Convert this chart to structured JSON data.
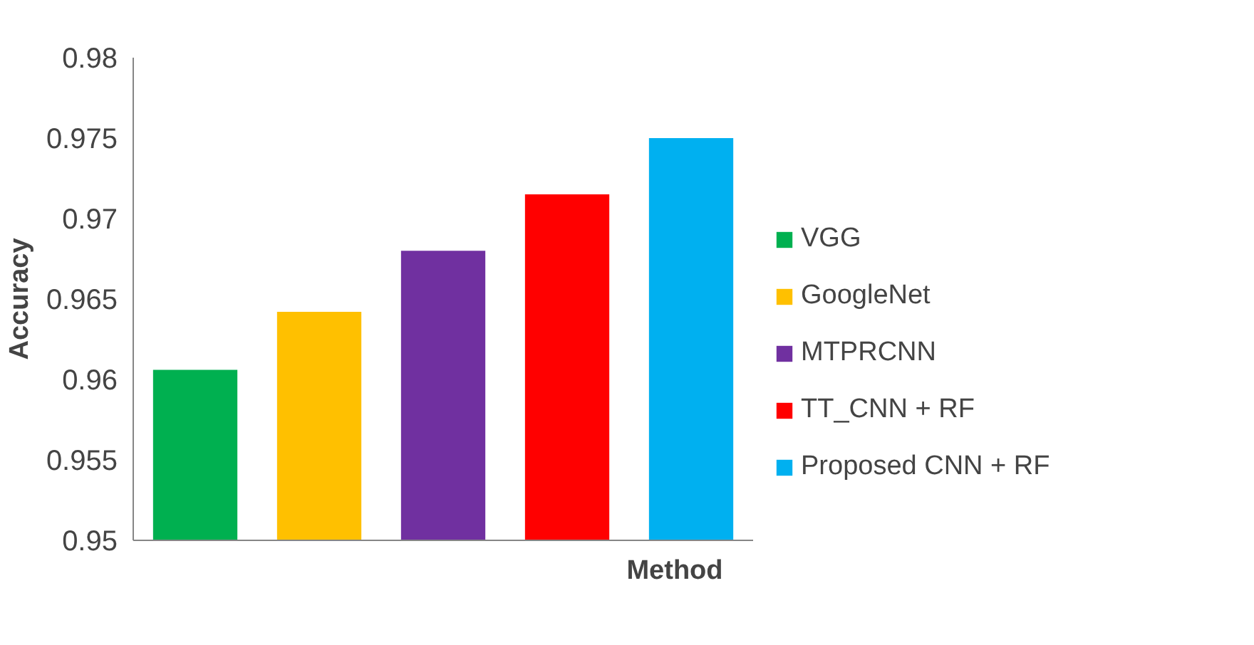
{
  "chart_data": {
    "type": "bar",
    "xlabel": "Method",
    "ylabel": "Accuracy",
    "categories": [
      null,
      null,
      null,
      null,
      null
    ],
    "series": [
      {
        "name": "VGG",
        "color": "#00b050",
        "values": [
          0.9606,
          null,
          null,
          null,
          null
        ]
      },
      {
        "name": "GoogleNet",
        "color": "#ffc000",
        "values": [
          null,
          0.9642,
          null,
          null,
          null
        ]
      },
      {
        "name": "MTPRCNN",
        "color": "#7030a0",
        "values": [
          null,
          null,
          0.968,
          null,
          null
        ]
      },
      {
        "name": "TT_CNN + RF",
        "color": "#ff0000",
        "values": [
          null,
          null,
          null,
          0.9715,
          null
        ]
      },
      {
        "name": "Proposed CNN + RF",
        "color": "#00b0f0",
        "values": [
          null,
          null,
          null,
          null,
          0.975
        ]
      }
    ],
    "ylim": [
      0.95,
      0.98
    ],
    "yticks": [
      0.95,
      0.955,
      0.96,
      0.965,
      0.97,
      0.975,
      0.98
    ],
    "grid": false,
    "legend": "right"
  }
}
